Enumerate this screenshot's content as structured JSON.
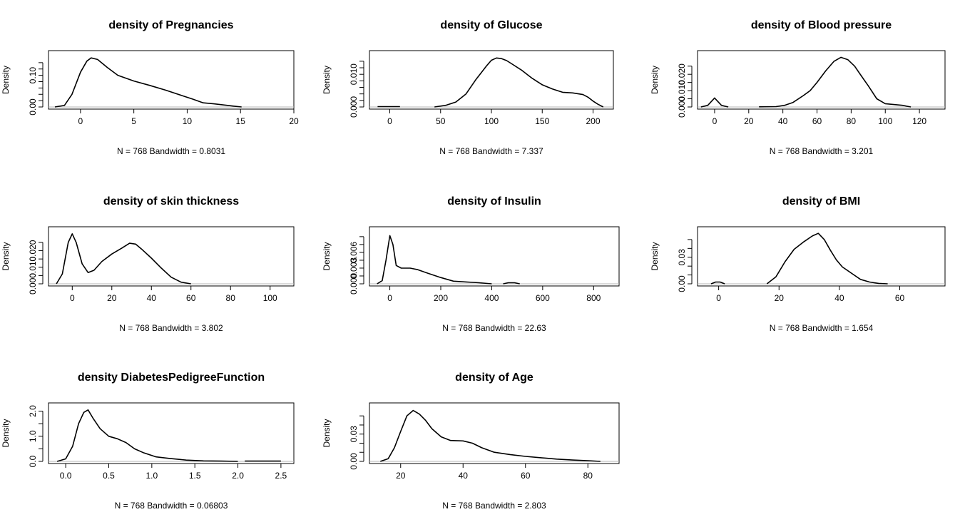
{
  "chart_data": [
    {
      "type": "line",
      "title": "density of Pregnancies",
      "ylabel": "Density",
      "xlabel": "N = 768   Bandwidth = 0.8031",
      "xlim": [
        -3,
        20
      ],
      "ylim": [
        0,
        0.16
      ],
      "xticks": [
        0,
        5,
        10,
        15,
        20
      ],
      "yticks": [
        0,
        0.1
      ],
      "ytick_labels": [
        "0.00",
        "0.10"
      ],
      "yminor": [
        0.02,
        0.04,
        0.06,
        0.08,
        0.12,
        0.14
      ],
      "series": [
        {
          "x": [
            -2.4,
            -1.5,
            -0.8,
            0,
            0.6,
            1,
            1.6,
            2.5,
            3.5,
            5,
            6.5,
            8,
            9.5,
            10.5,
            11.5,
            12.5,
            13.5,
            14.5,
            15.1
          ],
          "y": [
            0,
            0.005,
            0.04,
            0.11,
            0.145,
            0.155,
            0.15,
            0.125,
            0.1,
            0.082,
            0.068,
            0.053,
            0.036,
            0.025,
            0.013,
            0.01,
            0.006,
            0.002,
            0
          ]
        }
      ]
    },
    {
      "type": "line",
      "title": "density of Glucose",
      "ylabel": "Density",
      "xlabel": "N = 768   Bandwidth = 7.337",
      "xlim": [
        -20,
        220
      ],
      "ylim": [
        0,
        0.0155
      ],
      "xticks": [
        0,
        50,
        100,
        150,
        200
      ],
      "yticks": [
        0,
        0.01
      ],
      "ytick_labels": [
        "0.000",
        "0.010"
      ],
      "yminor": [
        0.002,
        0.004,
        0.006,
        0.008,
        0.012,
        0.014
      ],
      "series": [
        {
          "x": [
            -12,
            10
          ],
          "y": [
            0.0001,
            0.0001
          ]
        },
        {
          "x": [
            44,
            55,
            65,
            75,
            85,
            95,
            100,
            105,
            110,
            115,
            120,
            130,
            140,
            150,
            160,
            170,
            180,
            190,
            195,
            200,
            205,
            210
          ],
          "y": [
            0,
            0.0005,
            0.0015,
            0.004,
            0.0085,
            0.0125,
            0.0143,
            0.015,
            0.0148,
            0.0142,
            0.0132,
            0.0112,
            0.0088,
            0.0068,
            0.0055,
            0.0045,
            0.0043,
            0.0038,
            0.003,
            0.0018,
            0.0008,
            0
          ]
        }
      ]
    },
    {
      "type": "line",
      "title": "density of Blood pressure",
      "ylabel": "Density",
      "xlabel": "N = 768   Bandwidth = 3.201",
      "xlim": [
        -10,
        135
      ],
      "ylim": [
        0,
        0.031
      ],
      "xticks": [
        0,
        20,
        40,
        60,
        80,
        100,
        120
      ],
      "yticks": [
        0,
        0.01,
        0.02
      ],
      "ytick_labels": [
        "0.000",
        "0.010",
        "0.020"
      ],
      "yminor": [
        0.005,
        0.015,
        0.025
      ],
      "series": [
        {
          "x": [
            -8,
            -4,
            0,
            4,
            8
          ],
          "y": [
            0,
            0.001,
            0.0055,
            0.001,
            0
          ]
        },
        {
          "x": [
            26,
            36,
            41,
            46,
            52,
            56,
            60,
            65,
            70,
            74,
            78,
            82,
            86,
            90,
            95,
            100,
            105,
            110,
            115
          ],
          "y": [
            0.0001,
            0.0002,
            0.001,
            0.0028,
            0.007,
            0.01,
            0.015,
            0.022,
            0.028,
            0.0304,
            0.029,
            0.025,
            0.019,
            0.013,
            0.005,
            0.002,
            0.0015,
            0.001,
            0
          ]
        }
      ]
    },
    {
      "type": "line",
      "title": "density of skin thickness",
      "ylabel": "Density",
      "xlabel": "N = 768   Bandwidth = 3.802",
      "xlim": [
        -12,
        112
      ],
      "ylim": [
        0,
        0.031
      ],
      "xticks": [
        0,
        20,
        40,
        60,
        80,
        100
      ],
      "yticks": [
        0,
        0.01,
        0.02
      ],
      "ytick_labels": [
        "0.000",
        "0.010",
        "0.020"
      ],
      "yminor": [
        0.005,
        0.015,
        0.025
      ],
      "series": [
        {
          "x": [
            -8,
            -5,
            -2,
            0,
            2,
            5,
            8,
            11,
            15,
            20,
            25,
            29,
            32,
            35,
            40,
            45,
            50,
            55,
            60
          ],
          "y": [
            0,
            0.006,
            0.025,
            0.0302,
            0.025,
            0.012,
            0.0068,
            0.0082,
            0.0135,
            0.018,
            0.0215,
            0.0245,
            0.024,
            0.021,
            0.0155,
            0.0095,
            0.004,
            0.001,
            0
          ]
        }
      ]
    },
    {
      "type": "line",
      "title": "density of Insulin",
      "ylabel": "Density",
      "xlabel": "N = 768   Bandwidth = 22.63",
      "xlim": [
        -80,
        900
      ],
      "ylim": [
        0,
        0.0098
      ],
      "xticks": [
        0,
        200,
        400,
        600,
        800
      ],
      "yticks": [
        0,
        0.003,
        0.006
      ],
      "ytick_labels": [
        "0.000",
        "0.003",
        "0.006"
      ],
      "yminor": [
        0.0015,
        0.0045,
        0.0075,
        0.009
      ],
      "series": [
        {
          "x": [
            -50,
            -30,
            -15,
            0,
            12,
            25,
            45,
            80,
            110,
            150,
            200,
            250,
            300,
            350,
            400
          ],
          "y": [
            0,
            0.0006,
            0.0045,
            0.0092,
            0.0075,
            0.0035,
            0.003,
            0.003,
            0.0027,
            0.002,
            0.0012,
            0.0005,
            0.00035,
            0.0002,
            0
          ]
        },
        {
          "x": [
            445,
            465,
            490,
            510
          ],
          "y": [
            0,
            0.0002,
            0.0002,
            0
          ]
        }
      ]
    },
    {
      "type": "line",
      "title": "density of BMI",
      "ylabel": "Density",
      "xlabel": "N = 768   Bandwidth = 1.654",
      "xlim": [
        -7,
        75
      ],
      "ylim": [
        0,
        0.058
      ],
      "xticks": [
        0,
        20,
        40,
        60
      ],
      "yticks": [
        0,
        0.03
      ],
      "ytick_labels": [
        "0.00",
        "0.03"
      ],
      "yminor": [
        0.01,
        0.02,
        0.04,
        0.05
      ],
      "series": [
        {
          "x": [
            -2.5,
            -1,
            0.5,
            2
          ],
          "y": [
            0,
            0.002,
            0.002,
            0
          ]
        },
        {
          "x": [
            16,
            19,
            22,
            25,
            28,
            31,
            33,
            35,
            37,
            39,
            41,
            44,
            47,
            50,
            53,
            56
          ],
          "y": [
            0,
            0.008,
            0.025,
            0.039,
            0.047,
            0.054,
            0.057,
            0.05,
            0.038,
            0.027,
            0.019,
            0.012,
            0.005,
            0.002,
            0.0005,
            0
          ]
        }
      ]
    },
    {
      "type": "line",
      "title": "density DiabetesPedigreeFunction",
      "ylabel": "Density",
      "xlabel": "N = 768   Bandwidth = 0.06803",
      "xlim": [
        -0.2,
        2.65
      ],
      "ylim": [
        0,
        2.1
      ],
      "xticks": [
        0,
        0.5,
        1,
        1.5,
        2,
        2.5
      ],
      "xtick_labels": [
        "0.0",
        "0.5",
        "1.0",
        "1.5",
        "2.0",
        "2.5"
      ],
      "yticks": [
        0,
        1,
        2
      ],
      "ytick_labels": [
        "0.0",
        "1.0",
        "2.0"
      ],
      "yminor": [
        0.5,
        1.5
      ],
      "series": [
        {
          "x": [
            -0.1,
            0,
            0.08,
            0.15,
            0.21,
            0.26,
            0.32,
            0.4,
            0.5,
            0.6,
            0.7,
            0.8,
            0.9,
            1.05,
            1.2,
            1.4,
            1.6,
            1.8,
            2.0
          ],
          "y": [
            0,
            0.1,
            0.6,
            1.5,
            1.95,
            2.05,
            1.7,
            1.3,
            1.0,
            0.9,
            0.75,
            0.5,
            0.35,
            0.18,
            0.12,
            0.05,
            0.02,
            0.01,
            0
          ]
        },
        {
          "x": [
            2.08,
            2.5
          ],
          "y": [
            0.01,
            0.01
          ]
        }
      ]
    },
    {
      "type": "line",
      "title": "density of Age",
      "ylabel": "Density",
      "xlabel": "N = 768   Bandwidth = 2.803",
      "xlim": [
        10,
        90
      ],
      "ylim": [
        0,
        0.058
      ],
      "xticks": [
        20,
        40,
        60,
        80
      ],
      "yticks": [
        0,
        0.03
      ],
      "ytick_labels": [
        "0.00",
        "0.03"
      ],
      "yminor": [
        0.01,
        0.02,
        0.04,
        0.05
      ],
      "series": [
        {
          "x": [
            13.5,
            16,
            18,
            20,
            22,
            24,
            26,
            28,
            30,
            33,
            36,
            40,
            43,
            46,
            50,
            55,
            60,
            65,
            70,
            75,
            80,
            84
          ],
          "y": [
            0,
            0.003,
            0.015,
            0.033,
            0.05,
            0.056,
            0.052,
            0.045,
            0.036,
            0.027,
            0.023,
            0.0225,
            0.02,
            0.015,
            0.01,
            0.0075,
            0.0055,
            0.004,
            0.0025,
            0.0015,
            0.0008,
            0
          ]
        }
      ]
    }
  ]
}
